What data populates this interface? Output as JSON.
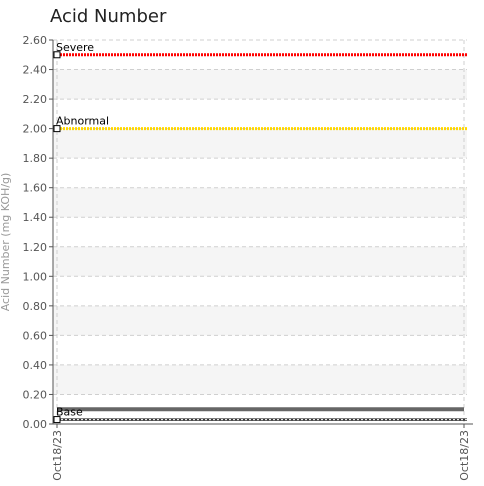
{
  "title": "Acid Number",
  "chart_data": {
    "type": "line",
    "title": "Acid Number",
    "xlabel": "",
    "ylabel": "Acid Number (mg KOH/g)",
    "ylim": [
      0,
      2.6
    ],
    "yticks": [
      "0.00",
      "0.20",
      "0.40",
      "0.60",
      "0.80",
      "1.00",
      "1.20",
      "1.40",
      "1.60",
      "1.80",
      "2.00",
      "2.20",
      "2.40",
      "2.60"
    ],
    "x": [
      "Oct18/23",
      "Oct18/23"
    ],
    "grid": true,
    "thresholds": [
      {
        "label": "Severe",
        "value": 2.5,
        "color": "#ff0000"
      },
      {
        "label": "Abnormal",
        "value": 2.0,
        "color": "#ffd700"
      },
      {
        "label": "Base",
        "value": 0.03,
        "color": "#333333"
      }
    ],
    "series": [
      {
        "values": [
          0.1,
          0.1
        ],
        "color": "#666666"
      }
    ]
  }
}
